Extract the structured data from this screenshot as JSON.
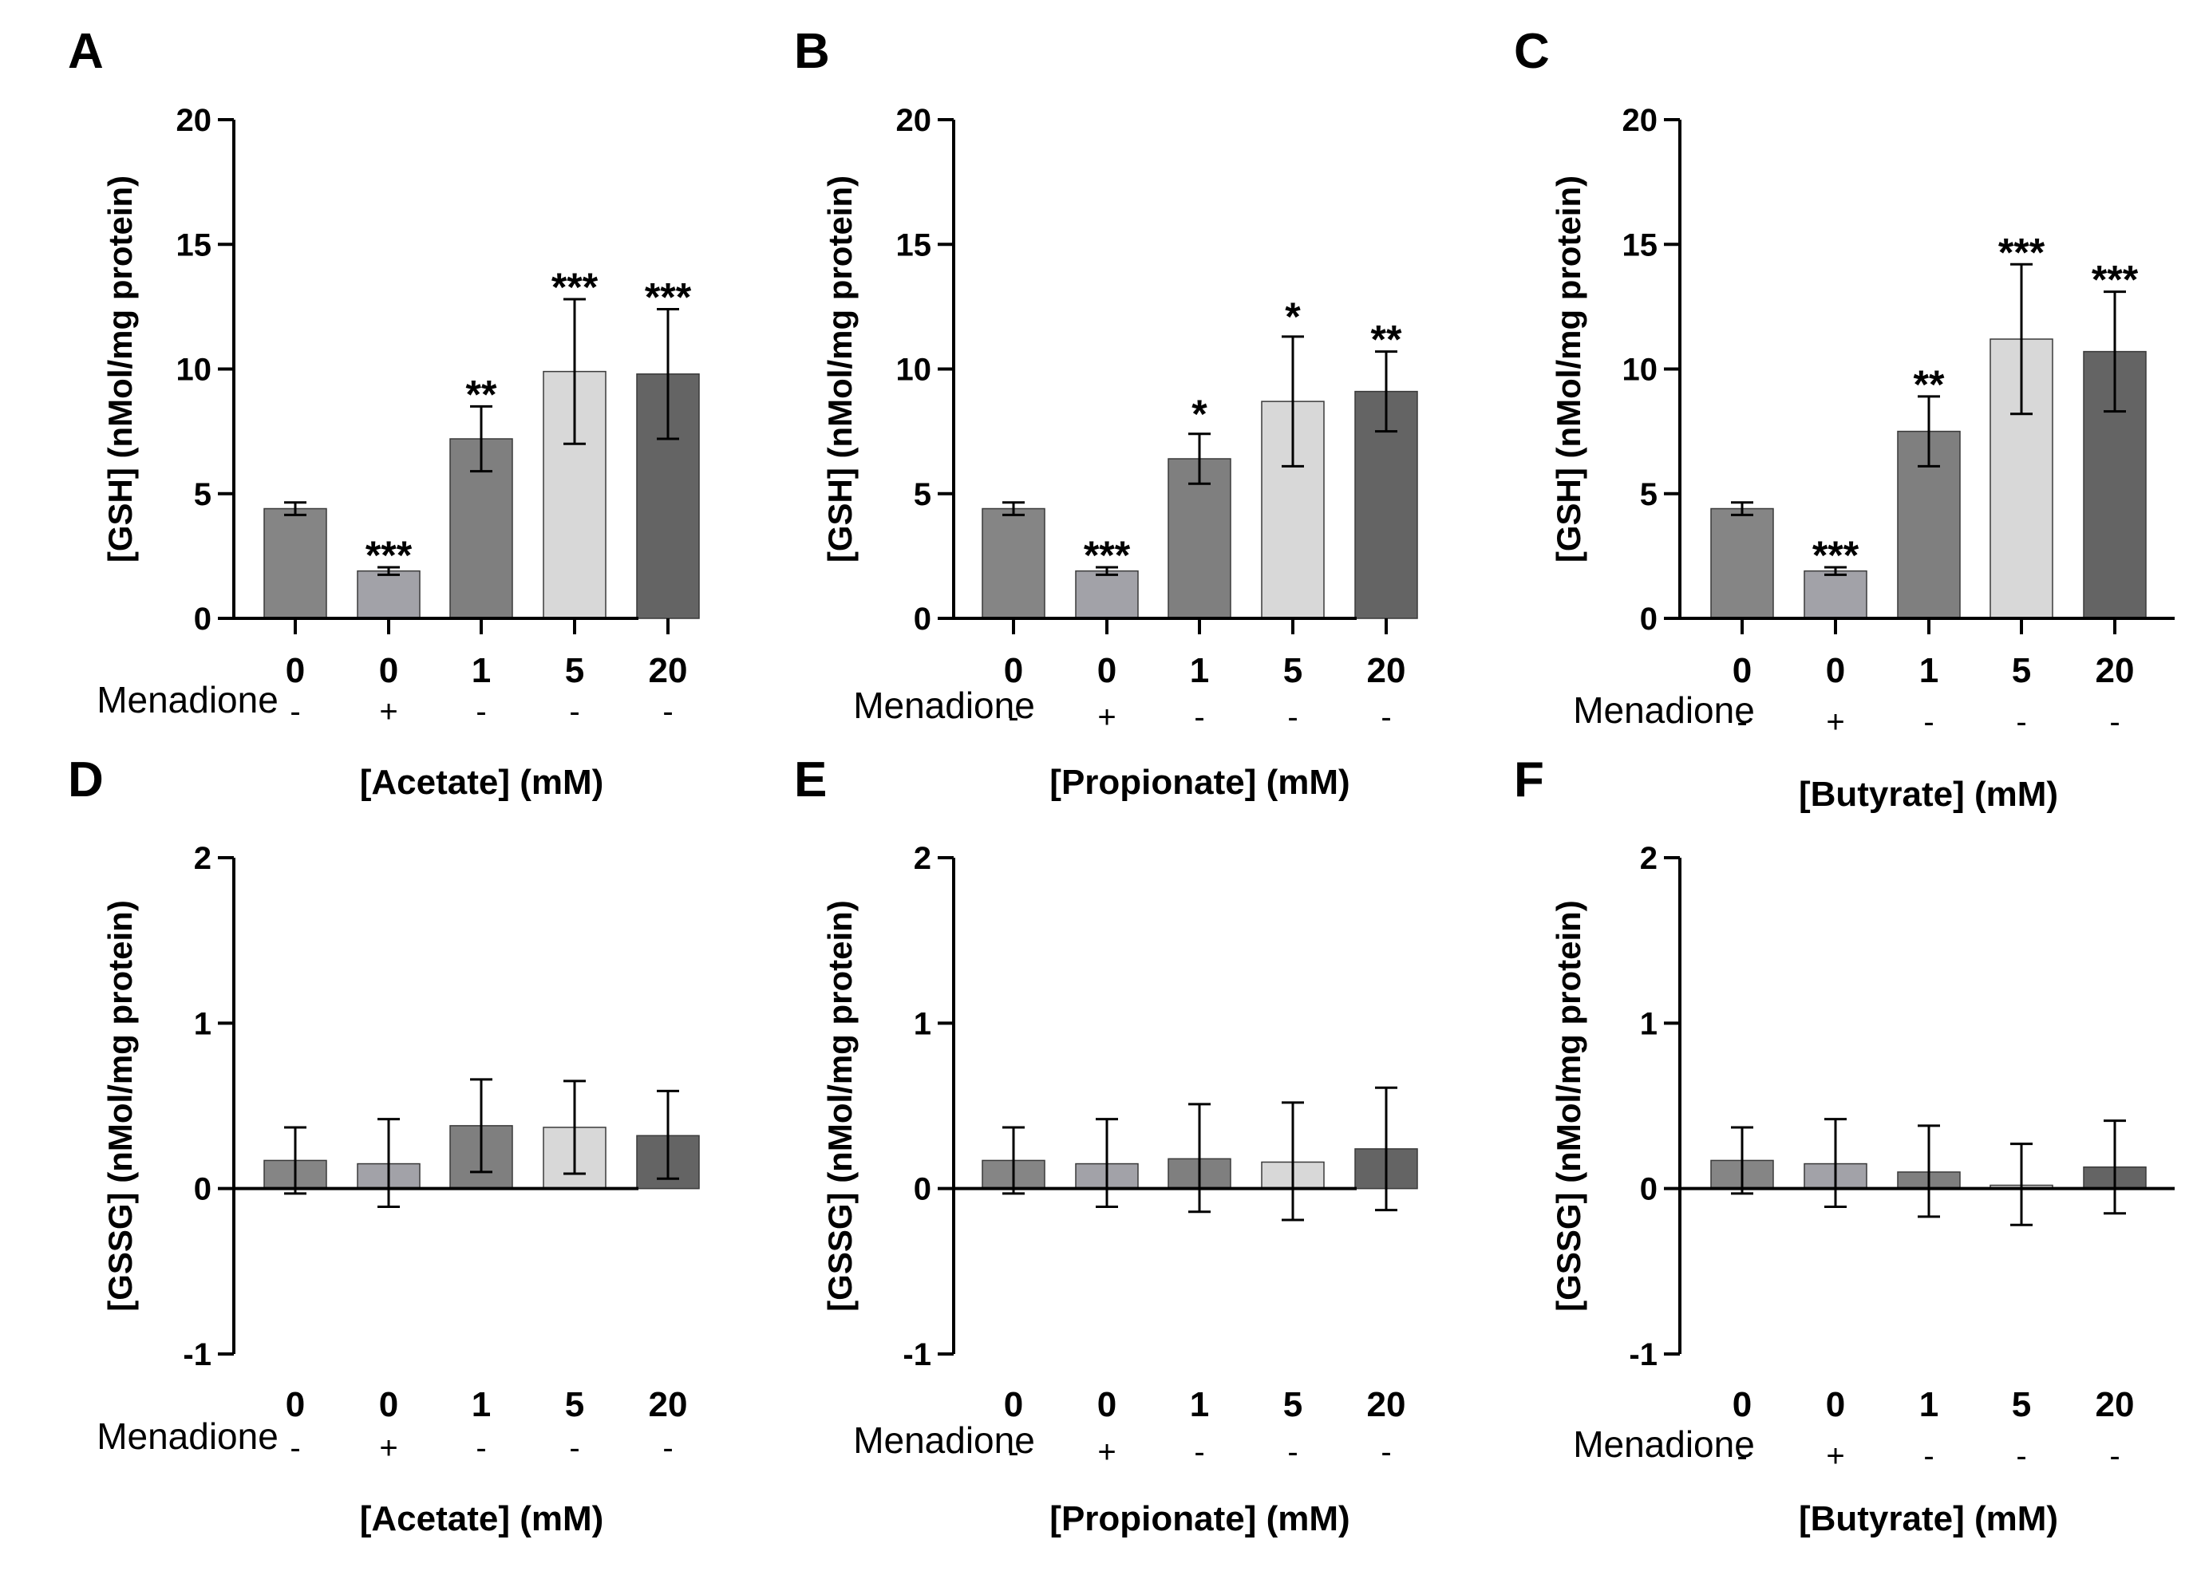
{
  "chart_data": [
    {
      "panel": "A",
      "type": "bar",
      "ylabel": "[GSH] (nMol/mg protein)",
      "xlabel": "[Acetate] (mM)",
      "ylim": [
        0,
        20
      ],
      "yticks": [
        "0",
        "5",
        "10",
        "15",
        "20"
      ],
      "categories": [
        "0",
        "0",
        "1",
        "5",
        "20"
      ],
      "treatment": {
        "name": "Menadione",
        "values": [
          "-",
          "+",
          "-",
          "-",
          "-"
        ]
      },
      "values": [
        4.4,
        1.9,
        7.2,
        9.9,
        9.8
      ],
      "err_low": [
        0.25,
        0.15,
        1.3,
        2.9,
        2.6
      ],
      "err_high": [
        0.25,
        0.15,
        1.3,
        2.9,
        2.6
      ],
      "significance": [
        "",
        "***",
        "**",
        "***",
        "***"
      ],
      "colors": [
        "#858585",
        "#a2a2a8",
        "#7f7f7f",
        "#d8d8d8",
        "#646464"
      ]
    },
    {
      "panel": "B",
      "type": "bar",
      "ylabel": "[GSH] (nMol/mg protein)",
      "xlabel": "[Propionate] (mM)",
      "ylim": [
        0,
        20
      ],
      "yticks": [
        "0",
        "5",
        "10",
        "15",
        "20"
      ],
      "categories": [
        "0",
        "0",
        "1",
        "5",
        "20"
      ],
      "treatment": {
        "name": "Menadione",
        "values": [
          "-",
          "+",
          "-",
          "-",
          "-"
        ]
      },
      "values": [
        4.4,
        1.9,
        6.4,
        8.7,
        9.1
      ],
      "err_low": [
        0.25,
        0.15,
        1.0,
        2.6,
        1.6
      ],
      "err_high": [
        0.25,
        0.15,
        1.0,
        2.6,
        1.6
      ],
      "significance": [
        "",
        "***",
        "*",
        "*",
        "**"
      ],
      "colors": [
        "#858585",
        "#a2a2a8",
        "#7f7f7f",
        "#d8d8d8",
        "#646464"
      ]
    },
    {
      "panel": "C",
      "type": "bar",
      "ylabel": "[GSH] (nMol/mg protein)",
      "xlabel": "[Butyrate] (mM)",
      "ylim": [
        0,
        20
      ],
      "yticks": [
        "0",
        "5",
        "10",
        "15",
        "20"
      ],
      "categories": [
        "0",
        "0",
        "1",
        "5",
        "20"
      ],
      "treatment": {
        "name": "Menadione",
        "values": [
          "-",
          "+",
          "-",
          "-",
          "-"
        ]
      },
      "values": [
        4.4,
        1.9,
        7.5,
        11.2,
        10.7
      ],
      "err_low": [
        0.25,
        0.15,
        1.4,
        3.0,
        2.4
      ],
      "err_high": [
        0.25,
        0.15,
        1.4,
        3.0,
        2.4
      ],
      "significance": [
        "",
        "***",
        "**",
        "***",
        "***"
      ],
      "colors": [
        "#858585",
        "#a2a2a8",
        "#7f7f7f",
        "#d8d8d8",
        "#646464"
      ]
    },
    {
      "panel": "D",
      "type": "bar",
      "ylabel": "[GSSG] (nMol/mg protein)",
      "xlabel": "[Acetate] (mM)",
      "ylim": [
        -1,
        2
      ],
      "yticks": [
        "-1",
        "0",
        "1",
        "2"
      ],
      "categories": [
        "0",
        "0",
        "1",
        "5",
        "20"
      ],
      "treatment": {
        "name": "Menadione",
        "values": [
          "-",
          "+",
          "-",
          "-",
          "-"
        ]
      },
      "values": [
        0.17,
        0.15,
        0.38,
        0.37,
        0.32
      ],
      "err_low": [
        0.2,
        0.26,
        0.28,
        0.28,
        0.26
      ],
      "err_high": [
        0.2,
        0.27,
        0.28,
        0.28,
        0.27
      ],
      "significance": [
        "",
        "",
        "",
        "",
        ""
      ],
      "colors": [
        "#858585",
        "#a2a2a8",
        "#7f7f7f",
        "#d8d8d8",
        "#646464"
      ]
    },
    {
      "panel": "E",
      "type": "bar",
      "ylabel": "[GSSG] (nMol/mg protein)",
      "xlabel": "[Propionate] (mM)",
      "ylim": [
        -1,
        2
      ],
      "yticks": [
        "-1",
        "0",
        "1",
        "2"
      ],
      "categories": [
        "0",
        "0",
        "1",
        "5",
        "20"
      ],
      "treatment": {
        "name": "Menadione",
        "values": [
          "-",
          "+",
          "-",
          "-",
          "-"
        ]
      },
      "values": [
        0.17,
        0.15,
        0.18,
        0.16,
        0.24
      ],
      "err_low": [
        0.2,
        0.26,
        0.32,
        0.35,
        0.37
      ],
      "err_high": [
        0.2,
        0.27,
        0.33,
        0.36,
        0.37
      ],
      "significance": [
        "",
        "",
        "",
        "",
        ""
      ],
      "colors": [
        "#858585",
        "#a2a2a8",
        "#7f7f7f",
        "#d8d8d8",
        "#646464"
      ]
    },
    {
      "panel": "F",
      "type": "bar",
      "ylabel": "[GSSG] (nMol/mg protein)",
      "xlabel": "[Butyrate] (mM)",
      "ylim": [
        -1,
        2
      ],
      "yticks": [
        "-1",
        "0",
        "1",
        "2"
      ],
      "categories": [
        "0",
        "0",
        "1",
        "5",
        "20"
      ],
      "treatment": {
        "name": "Menadione",
        "values": [
          "-",
          "+",
          "-",
          "-",
          "-"
        ]
      },
      "values": [
        0.17,
        0.15,
        0.1,
        0.02,
        0.13
      ],
      "err_low": [
        0.2,
        0.26,
        0.27,
        0.24,
        0.28
      ],
      "err_high": [
        0.2,
        0.27,
        0.28,
        0.25,
        0.28
      ],
      "significance": [
        "",
        "",
        "",
        "",
        ""
      ],
      "colors": [
        "#858585",
        "#a2a2a8",
        "#7f7f7f",
        "#d8d8d8",
        "#646464"
      ]
    }
  ]
}
